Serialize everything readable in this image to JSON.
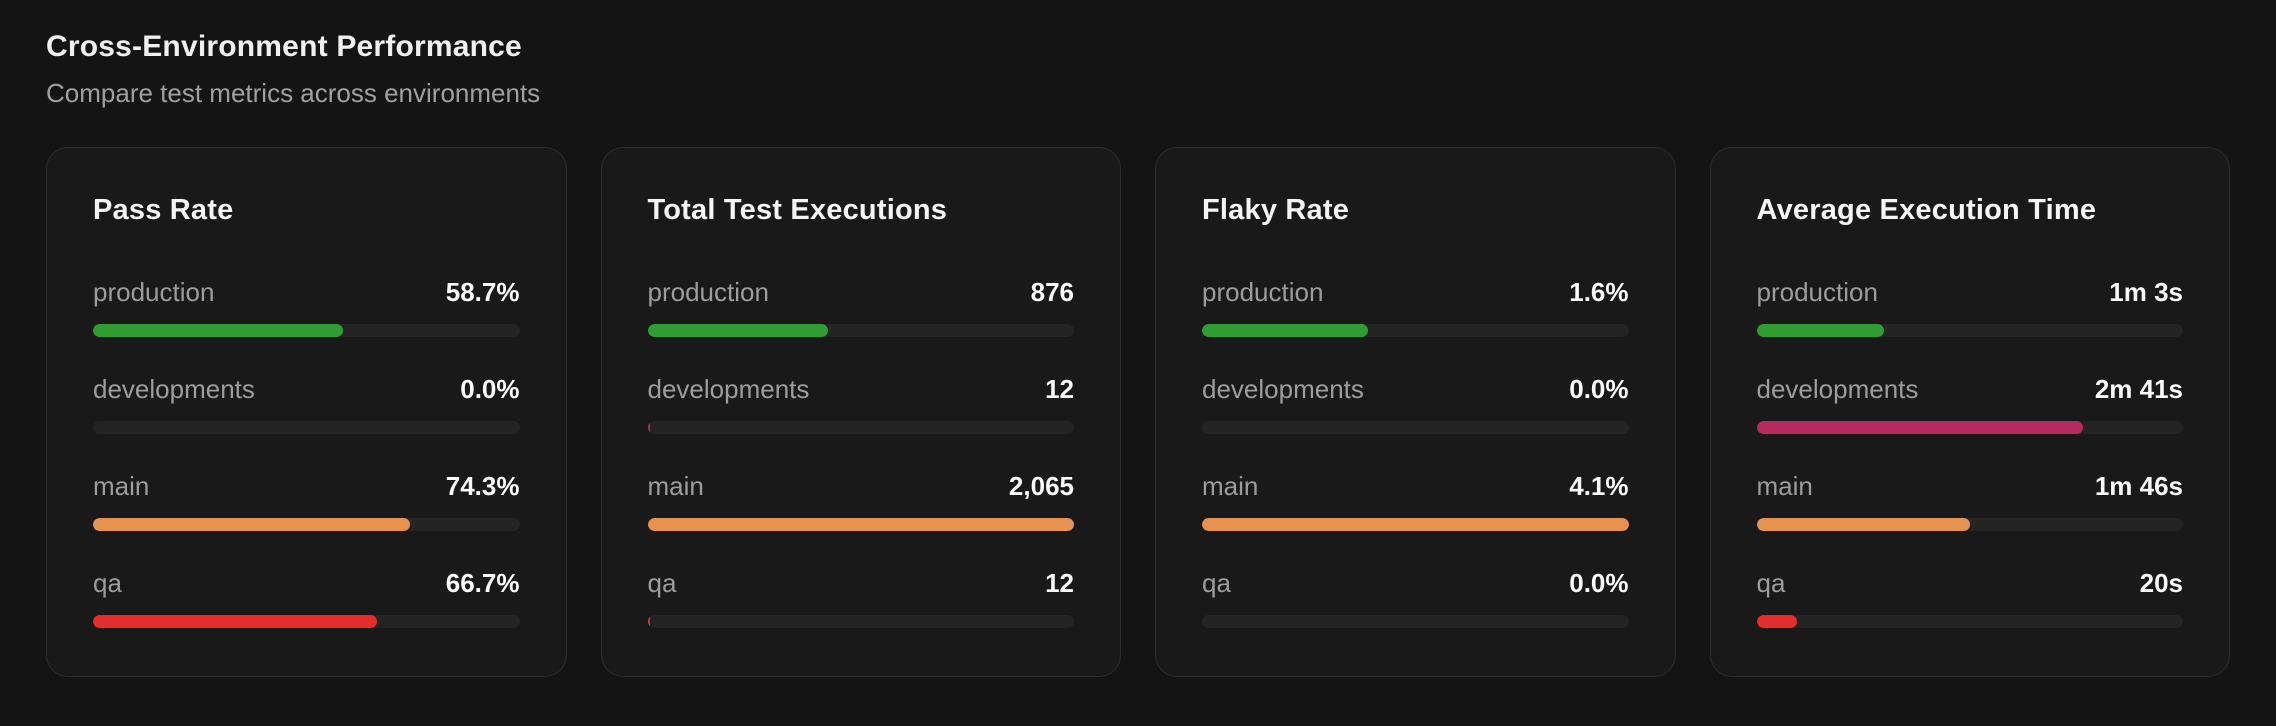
{
  "header": {
    "title": "Cross-Environment Performance",
    "subtitle": "Compare test metrics across environments"
  },
  "colors": {
    "production": "#2f9e32",
    "developments": "#b72a5f",
    "main": "#e8924f",
    "qa": "#e52e2c",
    "track": "#242424",
    "card_background": "#191919",
    "page_background": "#141414"
  },
  "cards": [
    {
      "title": "Pass Rate",
      "rows": [
        {
          "label": "production",
          "value": "58.7%",
          "fill": 58.7,
          "color": "#2f9e32"
        },
        {
          "label": "developments",
          "value": "0.0%",
          "fill": 0,
          "color": "#b72a5f"
        },
        {
          "label": "main",
          "value": "74.3%",
          "fill": 74.3,
          "color": "#e8924f"
        },
        {
          "label": "qa",
          "value": "66.7%",
          "fill": 66.7,
          "color": "#e52e2c"
        }
      ]
    },
    {
      "title": "Total Test Executions",
      "rows": [
        {
          "label": "production",
          "value": "876",
          "fill": 42.4,
          "color": "#2f9e32"
        },
        {
          "label": "developments",
          "value": "12",
          "fill": 0.7,
          "color": "#b72a5f"
        },
        {
          "label": "main",
          "value": "2,065",
          "fill": 100,
          "color": "#e8924f"
        },
        {
          "label": "qa",
          "value": "12",
          "fill": 0.7,
          "color": "#e52e2c"
        }
      ]
    },
    {
      "title": "Flaky Rate",
      "rows": [
        {
          "label": "production",
          "value": "1.6%",
          "fill": 39,
          "color": "#2f9e32"
        },
        {
          "label": "developments",
          "value": "0.0%",
          "fill": 0,
          "color": "#b72a5f"
        },
        {
          "label": "main",
          "value": "4.1%",
          "fill": 100,
          "color": "#e8924f"
        },
        {
          "label": "qa",
          "value": "0.0%",
          "fill": 0,
          "color": "#e52e2c"
        }
      ]
    },
    {
      "title": "Average Execution Time",
      "rows": [
        {
          "label": "production",
          "value": "1m 3s",
          "fill": 30,
          "color": "#2f9e32"
        },
        {
          "label": "developments",
          "value": "2m 41s",
          "fill": 76.6,
          "color": "#b72a5f"
        },
        {
          "label": "main",
          "value": "1m 46s",
          "fill": 50,
          "color": "#e8924f"
        },
        {
          "label": "qa",
          "value": "20s",
          "fill": 9.5,
          "color": "#e52e2c"
        }
      ]
    }
  ]
}
